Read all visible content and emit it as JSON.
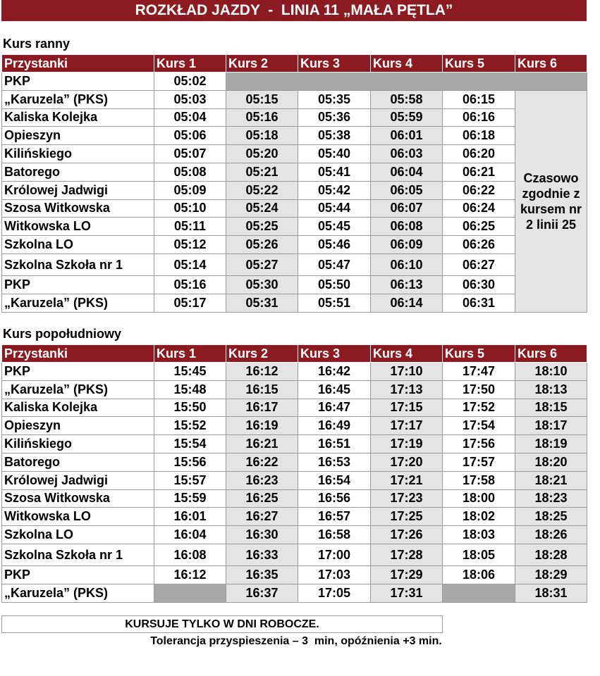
{
  "title": "ROZKŁAD JAZDY  -  LINIA 11 „MAŁA PĘTLA”",
  "morning": {
    "label": "Kurs ranny",
    "header": [
      "Przystanki",
      "Kurs 1",
      "Kurs 2",
      "Kurs 3",
      "Kurs 4",
      "Kurs 5",
      "Kurs 6"
    ],
    "note": "Czasowo zgodnie z kursem nr 2 linii 25",
    "rows": [
      [
        "PKP",
        "05:02"
      ],
      [
        "„Karuzela” (PKS)",
        "05:03",
        "05:15",
        "05:35",
        "05:58",
        "06:15"
      ],
      [
        "Kaliska Kolejka",
        "05:04",
        "05:16",
        "05:36",
        "05:59",
        "06:16"
      ],
      [
        "Opieszyn",
        "05:06",
        "05:18",
        "05:38",
        "06:01",
        "06:18"
      ],
      [
        "Kilińskiego",
        "05:07",
        "05:20",
        "05:40",
        "06:03",
        "06:20"
      ],
      [
        "Batorego",
        "05:08",
        "05:21",
        "05:41",
        "06:04",
        "06:21"
      ],
      [
        "Królowej Jadwigi",
        "05:09",
        "05:22",
        "05:42",
        "06:05",
        "06:22"
      ],
      [
        "Szosa Witkowska",
        "05:10",
        "05:24",
        "05:44",
        "06:07",
        "06:24"
      ],
      [
        "Witkowska LO",
        "05:11",
        "05:25",
        "05:45",
        "06:08",
        "06:25"
      ],
      [
        "Szkolna LO",
        "05:12",
        "05:26",
        "05:46",
        "06:09",
        "06:26"
      ],
      [
        "Szkolna Szkoła nr 1",
        "05:14",
        "05:27",
        "05:47",
        "06:10",
        "06:27"
      ],
      [
        "PKP",
        "05:16",
        "05:30",
        "05:50",
        "06:13",
        "06:30"
      ],
      [
        "„Karuzela” (PKS)",
        "05:17",
        "05:31",
        "05:51",
        "06:14",
        "06:31"
      ]
    ]
  },
  "afternoon": {
    "label": "Kurs popołudniowy",
    "header": [
      "Przystanki",
      "Kurs 1",
      "Kurs 2",
      "Kurs 3",
      "Kurs 4",
      "Kurs 5",
      "Kurs 6"
    ],
    "rows": [
      [
        "PKP",
        "15:45",
        "16:12",
        "16:42",
        "17:10",
        "17:47",
        "18:10"
      ],
      [
        "„Karuzela” (PKS)",
        "15:48",
        "16:15",
        "16:45",
        "17:13",
        "17:50",
        "18:13"
      ],
      [
        "Kaliska Kolejka",
        "15:50",
        "16:17",
        "16:47",
        "17:15",
        "17:52",
        "18:15"
      ],
      [
        "Opieszyn",
        "15:52",
        "16:19",
        "16:49",
        "17:17",
        "17:54",
        "18:17"
      ],
      [
        "Kilińskiego",
        "15:54",
        "16:21",
        "16:51",
        "17:19",
        "17:56",
        "18:19"
      ],
      [
        "Batorego",
        "15:56",
        "16:22",
        "16:53",
        "17:20",
        "17:57",
        "18:20"
      ],
      [
        "Królowej Jadwigi",
        "15:57",
        "16:23",
        "16:54",
        "17:21",
        "17:58",
        "18:21"
      ],
      [
        "Szosa Witkowska",
        "15:59",
        "16:25",
        "16:56",
        "17:23",
        "18:00",
        "18:23"
      ],
      [
        "Witkowska LO",
        "16:01",
        "16:27",
        "16:57",
        "17:25",
        "18:02",
        "18:25"
      ],
      [
        "Szkolna LO",
        "16:04",
        "16:30",
        "16:58",
        "17:26",
        "18:03",
        "18:26"
      ],
      [
        "Szkolna Szkoła nr 1",
        "16:08",
        "16:33",
        "17:00",
        "17:28",
        "18:05",
        "18:28"
      ],
      [
        "PKP",
        "16:12",
        "16:35",
        "17:03",
        "17:29",
        "18:06",
        "18:29"
      ],
      [
        "„Karuzela” (PKS)",
        null,
        "16:37",
        "17:05",
        "17:31",
        null,
        "18:31"
      ]
    ]
  },
  "footer": {
    "notice": "KURSUJE TYLKO W DNI ROBOCZE.",
    "tolerance": "Tolerancja przyspieszenia – 3  min, opóźnienia +3 min."
  }
}
